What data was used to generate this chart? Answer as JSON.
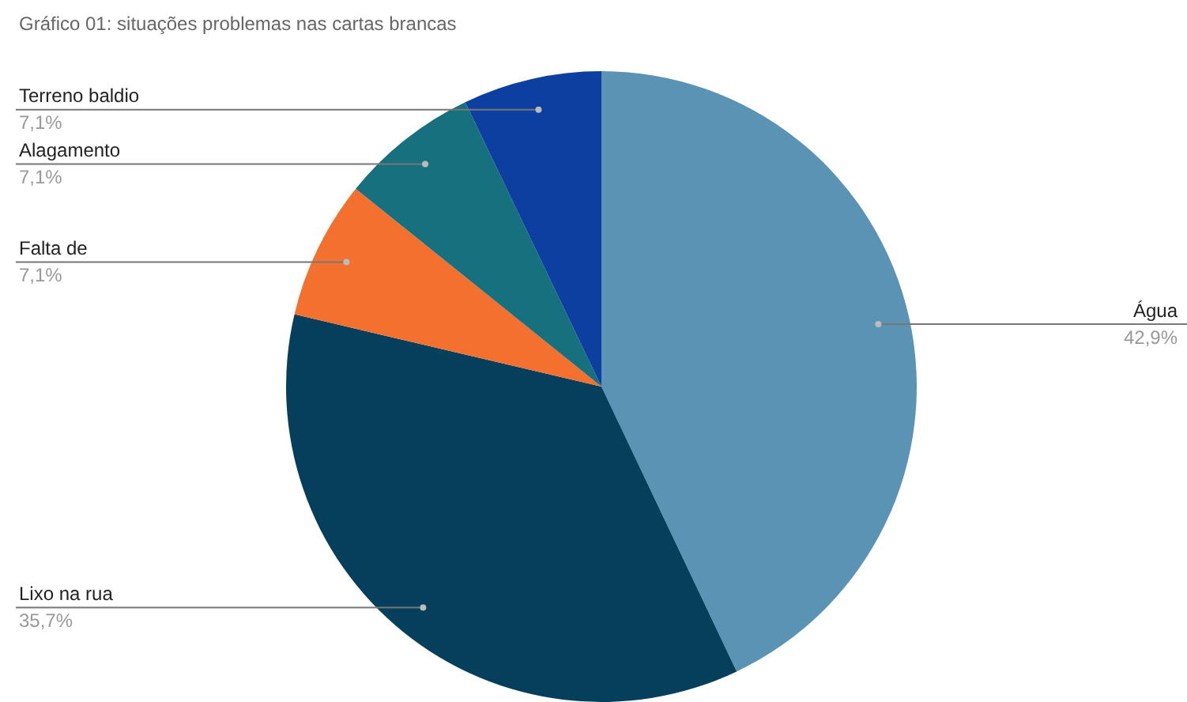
{
  "chart_data": {
    "type": "pie",
    "title": "Gráfico 01: situações problemas nas cartas brancas",
    "categories": [
      "Água",
      "Lixo na rua",
      "Falta de",
      "Alagamento",
      "Terreno baldio"
    ],
    "values": [
      42.9,
      35.7,
      7.1,
      7.1,
      7.1
    ],
    "value_labels": [
      "42,9%",
      "35,7%",
      "7,1%",
      "7,1%",
      "7,1%"
    ],
    "colors": [
      "#5b93b4",
      "#063f5c",
      "#f4702f",
      "#17707e",
      "#0d3fa0"
    ],
    "legend": false
  }
}
